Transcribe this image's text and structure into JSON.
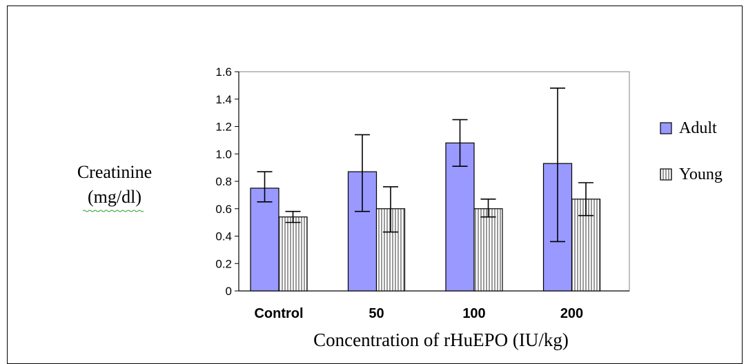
{
  "chart_data": {
    "type": "bar",
    "ylabel_line1": "Creatinine",
    "ylabel_line2": "(mg/dl)",
    "xlabel": "Concentration of rHuEPO (IU/kg)",
    "categories": [
      "Control",
      "50",
      "100",
      "200"
    ],
    "ylim": [
      0,
      1.6
    ],
    "yticks": [
      "0",
      "0.2",
      "0.4",
      "0.6",
      "0.8",
      "1.0",
      "1.2",
      "1.4",
      "1.6"
    ],
    "series": [
      {
        "name": "Adult",
        "color": "#9999ff",
        "values": [
          0.75,
          0.87,
          1.08,
          0.93
        ],
        "err_low": [
          0.65,
          0.58,
          0.91,
          0.36
        ],
        "err_high": [
          0.87,
          1.14,
          1.25,
          1.48
        ]
      },
      {
        "name": "Young",
        "color": "#ffffff",
        "pattern": "vertical-stripes",
        "values": [
          0.54,
          0.6,
          0.6,
          0.67
        ],
        "err_low": [
          0.5,
          0.43,
          0.54,
          0.55
        ],
        "err_high": [
          0.58,
          0.76,
          0.67,
          0.79
        ]
      }
    ],
    "legend_position": "right",
    "grid": false
  }
}
